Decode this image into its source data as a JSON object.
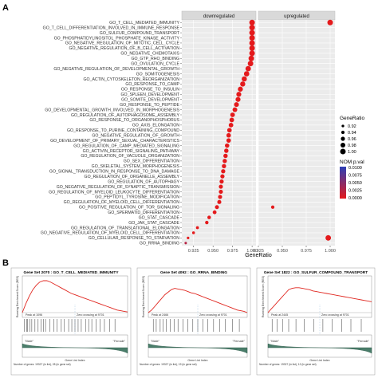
{
  "panel_labels": [
    "A",
    "B"
  ],
  "chart_data": [
    {
      "type": "scatter",
      "facets": [
        "downregulated",
        "upregulated"
      ],
      "xlabel": "GeneRatio",
      "ylabel": "",
      "facet_xlim": [
        [
          0.91,
          1.005
        ],
        [
          0.925,
          1.005
        ]
      ],
      "facet_xticks": [
        [
          0.925,
          0.95,
          0.975,
          1.0
        ],
        [
          0.925,
          0.95,
          0.975,
          1.0
        ]
      ],
      "facet_xtick_labels": [
        [
          "0.925",
          "0.950",
          "0.975",
          "1.000"
        ],
        [
          "0.925",
          "0.950",
          "0.975",
          "1.000"
        ]
      ],
      "size_legend_title": "GeneRatio",
      "size_legend_values": [
        0.92,
        0.94,
        0.96,
        0.98,
        1.0
      ],
      "size_legend_labels": [
        "0.92",
        "0.94",
        "0.96",
        "0.98",
        "1.00"
      ],
      "color_legend_title": "NOM p.val",
      "color_legend_values": [
        0.01,
        0.0075,
        0.005,
        0.0025,
        0.0
      ],
      "color_legend_labels": [
        "0.0100",
        "0.0075",
        "0.0050",
        "0.0025",
        "0.0000"
      ],
      "color_scale": [
        "#2b3fb6",
        "#e41a1c"
      ],
      "terms": [
        "GO_T_CELL_MEDIATED_IMMUNITY",
        "GO_T_CELL_DIFFERENTIATION_INVOLVED_IN_IMMUNE_RESPONSE",
        "GO_SULFUR_COMPOUND_TRANSPORT",
        "GO_PHOSPHATIDYLINOSITOL_PHOSPHATE_KINASE_ACTIVITY",
        "GO_NEGATIVE_REGULATION_OF_MITOTIC_CELL_CYCLE",
        "GO_NEGATIVE_REGULATION_OF_B_CELL_ACTIVATION",
        "GO_NEGATIVE_CHEMOTAXIS",
        "GO_GTP_RHO_BINDING",
        "GO_OVULATION_CYCLE",
        "GO_NEGATIVE_REGULATION_OF_DEVELOPMENTAL_GROWTH",
        "GO_SOMITOGENESIS",
        "GO_ACTIN_CYTOSKELETON_REORGANIZATION",
        "GO_RESPONSE_TO_CAMP",
        "GO_RESPONSE_TO_INSULIN",
        "GO_SPLEEN_DEVELOPMENT",
        "GO_SOMITE_DEVELOPMENT",
        "GO_RESPONSE_TO_PEPTIDE",
        "GO_DEVELOPMENTAL_GROWTH_INVOLVED_IN_MORPHOGENESIS",
        "GO_REGULATION_OF_AUTOPHAGOSOME_ASSEMBLY",
        "GO_RESPONSE_TO_ORGANOPHOSPHORUS",
        "GO_AXIS_ELONGATION",
        "GO_RESPONSE_TO_PURINE_CONTAINING_COMPOUND",
        "GO_NEGATIVE_REGULATION_OF_GROWTH",
        "GO_DEVELOPMENT_OF_PRIMARY_SEXUAL_CHARACTERISTICS",
        "GO_REGULATION_OF_CAMP_MEDIATED_SIGNALING",
        "GO_ACTIVIN_RECEPTOR_SIGNALING_PATHWAY",
        "GO_REGULATION_OF_VACUOLE_ORGANIZATION",
        "GO_SEX_DIFFERENTIATION",
        "GO_SKELETAL_SYSTEM_MORPHOGENESIS",
        "GO_SIGNAL_TRANSDUCTION_IN_RESPONSE_TO_DNA_DAMAGE",
        "GO_REGULATION_OF_ORGANELLE_ASSEMBLY",
        "GO_REGULATION_OF_AUTOPHAGY",
        "GO_NEGATIVE_REGULATION_OF_SYNAPTIC_TRANSMISSION",
        "GO_REGULATION_OF_MYELOID_LEUKOCYTE_DIFFERENTIATION",
        "GO_PEPTIDYL_TYROSINE_MODIFICATION",
        "GO_REGULATION_OF_MYELOID_CELL_DIFFERENTIATION",
        "GO_POSITIVE_REGULATION_OF_TOR_SIGNALING",
        "GO_SPERMATID_DIFFERENTIATION",
        "GO_STAT_CASCADE",
        "GO_JAK_STAT_CASCADE",
        "GO_REGULATION_OF_TRANSLATIONAL_ELONGATION",
        "GO_NEGATIVE_REGULATION_OF_MYELOID_CELL_DIFFERENTIATION",
        "GO_CELLULAR_RESPONSE_TO_STARVATION",
        "GO_RRNA_BINDING"
      ],
      "down_gene_ratio": [
        1.0,
        1.0,
        1.0,
        1.0,
        1.0,
        1.0,
        1.0,
        0.999,
        0.998,
        0.995,
        0.993,
        0.99,
        0.988,
        0.985,
        0.983,
        0.982,
        0.98,
        0.978,
        0.975,
        0.974,
        0.973,
        0.971,
        0.97,
        0.97,
        0.968,
        0.967,
        0.966,
        0.965,
        0.964,
        0.963,
        0.962,
        0.961,
        0.96,
        0.96,
        0.959,
        0.958,
        0.955,
        0.952,
        0.945,
        0.942,
        0.93,
        0.925,
        0.918,
        0.915
      ],
      "down_p_val": [
        0.0,
        0.0,
        0.0,
        0.0,
        0.0,
        0.0,
        0.0,
        0.0,
        0.0,
        0.0,
        0.0,
        0.0,
        0.0,
        0.0,
        0.0,
        0.0,
        0.0,
        0.0,
        0.0,
        0.0,
        0.0,
        0.0,
        0.0,
        0.0,
        0.0,
        0.0,
        0.0,
        0.0,
        0.0,
        0.0,
        0.0,
        0.0,
        0.0,
        0.0,
        0.0,
        0.0,
        0.0,
        0.0,
        0.0,
        0.0,
        0.0,
        0.0,
        0.0,
        0.0025
      ],
      "up_points": [
        {
          "term": "GO_T_CELL_MEDIATED_IMMUNITY",
          "gene_ratio": 1.0,
          "p_val": 0.0
        },
        {
          "term": "GO_POSITIVE_REGULATION_OF_TOR_SIGNALING",
          "gene_ratio": 0.94,
          "p_val": 0.0
        },
        {
          "term": "GO_CELLULAR_RESPONSE_TO_STARVATION",
          "gene_ratio": 0.998,
          "p_val": 0.0
        }
      ]
    },
    {
      "type": "line",
      "titles": [
        "Gene Set 2070 : GO_T_CELL_MEDIATED_IMMUNITY",
        "Gene Set 4092 : GO_RRNA_BINDING",
        "Gene Set 1822 : GO_SULFUR_COMPOUND_TRANSPORT"
      ],
      "ylabel": "Running Enrichment Score (RES)",
      "xlabel": "Gene List Index",
      "peak_labels": [
        "Peak at 1096",
        "Peak at 2466",
        "Peak at 2445"
      ],
      "zero_cross_labels": [
        "Zero crossing at 9701",
        "Zero crossing at 9701",
        "Zero crossing at 9701"
      ],
      "left_class": [
        "\"Male\"",
        "\"Male\"",
        "\"Male\""
      ],
      "right_class": [
        "\"Female\"",
        "\"Female\"",
        "\"Female\""
      ],
      "footer": [
        "Number of genes: 19327 (in list), 28 (in gene set)",
        "Number of genes: 19327 (in list), 19 (in gene set)",
        "Number of genes: 19327 (in list), 12 (in gene set)"
      ],
      "es_series": [
        [
          0,
          0.14,
          0.26,
          0.36,
          0.43,
          0.48,
          0.5,
          0.5,
          0.48,
          0.45,
          0.42,
          0.39,
          0.36,
          0.33,
          0.3,
          0.28,
          0.26,
          0.24,
          0.22,
          0.2,
          0.18,
          0.16,
          0.14,
          0.12,
          0.1,
          0.08,
          0.06,
          0.04,
          0.03,
          0.02,
          0.01
        ],
        [
          0,
          0.04,
          0.1,
          0.16,
          0.22,
          0.28,
          0.32,
          0.36,
          0.38,
          0.37,
          0.36,
          0.35,
          0.33,
          0.31,
          0.3,
          0.28,
          0.26,
          0.24,
          0.22,
          0.2,
          0.18,
          0.16,
          0.14,
          0.12,
          0.1,
          0.08,
          0.06,
          0.04,
          0.03,
          0.02,
          0.0
        ],
        [
          0,
          0.06,
          0.12,
          0.18,
          0.24,
          0.3,
          0.36,
          0.38,
          0.39,
          0.39,
          0.38,
          0.37,
          0.36,
          0.34,
          0.33,
          0.32,
          0.31,
          0.3,
          0.29,
          0.28,
          0.27,
          0.26,
          0.25,
          0.24,
          0.23,
          0.22,
          0.21,
          0.2,
          0.19,
          0.18,
          0.17
        ]
      ],
      "hit_positions": [
        [
          0.02,
          0.04,
          0.05,
          0.07,
          0.09,
          0.12,
          0.15,
          0.18,
          0.2,
          0.22,
          0.26,
          0.3,
          0.33,
          0.37,
          0.4,
          0.44,
          0.47,
          0.5,
          0.53,
          0.56,
          0.6,
          0.63,
          0.66,
          0.7,
          0.74,
          0.78,
          0.83,
          0.88
        ],
        [
          0.05,
          0.08,
          0.12,
          0.15,
          0.18,
          0.22,
          0.26,
          0.3,
          0.35,
          0.4,
          0.45,
          0.5,
          0.55,
          0.6,
          0.66,
          0.72,
          0.78,
          0.85,
          0.92
        ],
        [
          0.04,
          0.09,
          0.14,
          0.2,
          0.27,
          0.35,
          0.44,
          0.53,
          0.62,
          0.71,
          0.8,
          0.9
        ]
      ]
    }
  ]
}
